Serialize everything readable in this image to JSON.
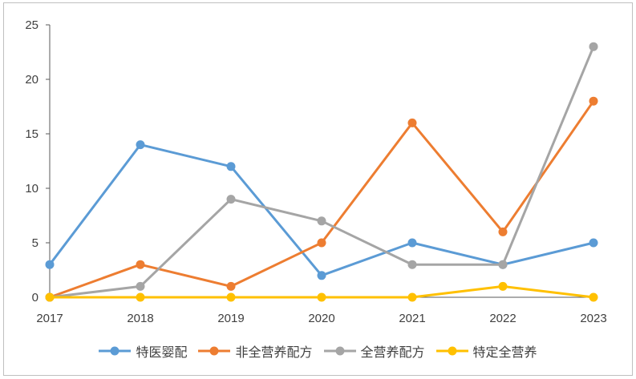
{
  "chart_data": {
    "type": "line",
    "title": "",
    "xlabel": "",
    "ylabel": "",
    "x": [
      "2017",
      "2018",
      "2019",
      "2020",
      "2021",
      "2022",
      "2023"
    ],
    "ylim": [
      0,
      25
    ],
    "yticks": [
      "0",
      "5",
      "10",
      "15",
      "20",
      "25"
    ],
    "legend_position": "bottom",
    "series": [
      {
        "name": "特医婴配",
        "color": "#5b9bd5",
        "values": [
          3,
          14,
          12,
          2,
          5,
          3,
          5
        ]
      },
      {
        "name": "非全营养配方",
        "color": "#ed7d31",
        "values": [
          0,
          3,
          1,
          5,
          16,
          6,
          18
        ]
      },
      {
        "name": "全营养配方",
        "color": "#a5a5a5",
        "values": [
          0,
          1,
          9,
          7,
          3,
          3,
          23
        ]
      },
      {
        "name": "特定全营养",
        "color": "#ffc000",
        "values": [
          0,
          0,
          0,
          0,
          0,
          1,
          0
        ]
      }
    ]
  }
}
